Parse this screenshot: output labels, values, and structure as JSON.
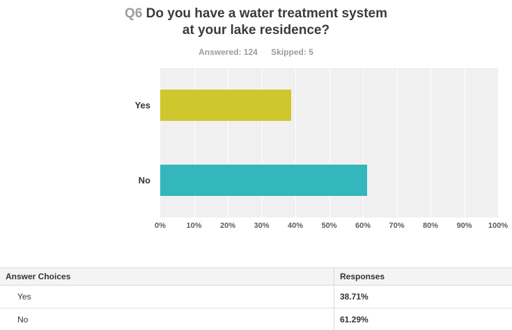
{
  "title": {
    "prefix": "Q6",
    "line1": "Do you have a water treatment system",
    "line2": "at your lake residence?"
  },
  "stats": {
    "answered": "Answered: 124",
    "skipped": "Skipped: 5"
  },
  "chart_data": {
    "type": "bar",
    "orientation": "horizontal",
    "title": "Q6 Do you have a water treatment system at your lake residence?",
    "categories": [
      "Yes",
      "No"
    ],
    "values": [
      38.71,
      61.29
    ],
    "colors": [
      "#cfc72d",
      "#33b6bc"
    ],
    "xlim": [
      0,
      100
    ],
    "x_ticks": [
      "0%",
      "10%",
      "20%",
      "30%",
      "40%",
      "50%",
      "60%",
      "70%",
      "80%",
      "90%",
      "100%"
    ],
    "grid": true,
    "plot_background": "#f0f0f0",
    "legend": "none"
  },
  "table": {
    "headers": [
      "Answer Choices",
      "Responses"
    ],
    "rows": [
      {
        "choice": "Yes",
        "response": "38.71%"
      },
      {
        "choice": "No",
        "response": "61.29%"
      }
    ]
  }
}
